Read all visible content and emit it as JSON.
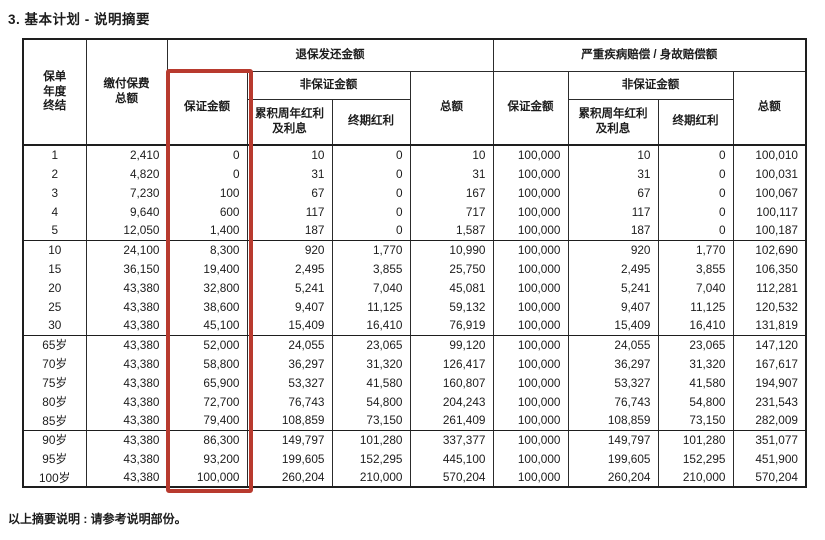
{
  "title": "3. 基本计划 - 说明摘要",
  "footnote": "以上摘要说明 : 请参考说明部份。",
  "accent_color": "#b83a2e",
  "table": {
    "header": {
      "policy_year": {
        "l1": "保单",
        "l2": "年度",
        "l3": "终结"
      },
      "premium": {
        "l1": "缴付保费",
        "l2": "总额"
      },
      "group_surrender": "退保发还金额",
      "group_benefit": "严重疾病赔偿 / 身故赔偿额",
      "guaranteed": "保证金额",
      "non_guaranteed": "非保证金额",
      "accumulated_dividend": {
        "l1": "累积周年红利",
        "l2": "及利息"
      },
      "terminal_dividend": "终期红利",
      "total": "总额"
    },
    "row_groups": [
      {
        "rows": [
          {
            "year": "1",
            "cells": [
              "2,410",
              "0",
              "10",
              "0",
              "10",
              "100,000",
              "10",
              "0",
              "100,010"
            ]
          },
          {
            "year": "2",
            "cells": [
              "4,820",
              "0",
              "31",
              "0",
              "31",
              "100,000",
              "31",
              "0",
              "100,031"
            ]
          },
          {
            "year": "3",
            "cells": [
              "7,230",
              "100",
              "67",
              "0",
              "167",
              "100,000",
              "67",
              "0",
              "100,067"
            ]
          },
          {
            "year": "4",
            "cells": [
              "9,640",
              "600",
              "117",
              "0",
              "717",
              "100,000",
              "117",
              "0",
              "100,117"
            ]
          },
          {
            "year": "5",
            "cells": [
              "12,050",
              "1,400",
              "187",
              "0",
              "1,587",
              "100,000",
              "187",
              "0",
              "100,187"
            ]
          }
        ]
      },
      {
        "rows": [
          {
            "year": "10",
            "cells": [
              "24,100",
              "8,300",
              "920",
              "1,770",
              "10,990",
              "100,000",
              "920",
              "1,770",
              "102,690"
            ]
          },
          {
            "year": "15",
            "cells": [
              "36,150",
              "19,400",
              "2,495",
              "3,855",
              "25,750",
              "100,000",
              "2,495",
              "3,855",
              "106,350"
            ]
          },
          {
            "year": "20",
            "cells": [
              "43,380",
              "32,800",
              "5,241",
              "7,040",
              "45,081",
              "100,000",
              "5,241",
              "7,040",
              "112,281"
            ]
          },
          {
            "year": "25",
            "cells": [
              "43,380",
              "38,600",
              "9,407",
              "11,125",
              "59,132",
              "100,000",
              "9,407",
              "11,125",
              "120,532"
            ]
          },
          {
            "year": "30",
            "cells": [
              "43,380",
              "45,100",
              "15,409",
              "16,410",
              "76,919",
              "100,000",
              "15,409",
              "16,410",
              "131,819"
            ]
          }
        ]
      },
      {
        "rows": [
          {
            "year": "65岁",
            "cells": [
              "43,380",
              "52,000",
              "24,055",
              "23,065",
              "99,120",
              "100,000",
              "24,055",
              "23,065",
              "147,120"
            ]
          },
          {
            "year": "70岁",
            "cells": [
              "43,380",
              "58,800",
              "36,297",
              "31,320",
              "126,417",
              "100,000",
              "36,297",
              "31,320",
              "167,617"
            ]
          },
          {
            "year": "75岁",
            "cells": [
              "43,380",
              "65,900",
              "53,327",
              "41,580",
              "160,807",
              "100,000",
              "53,327",
              "41,580",
              "194,907"
            ]
          },
          {
            "year": "80岁",
            "cells": [
              "43,380",
              "72,700",
              "76,743",
              "54,800",
              "204,243",
              "100,000",
              "76,743",
              "54,800",
              "231,543"
            ]
          },
          {
            "year": "85岁",
            "cells": [
              "43,380",
              "79,400",
              "108,859",
              "73,150",
              "261,409",
              "100,000",
              "108,859",
              "73,150",
              "282,009"
            ]
          }
        ]
      },
      {
        "rows": [
          {
            "year": "90岁",
            "cells": [
              "43,380",
              "86,300",
              "149,797",
              "101,280",
              "337,377",
              "100,000",
              "149,797",
              "101,280",
              "351,077"
            ]
          },
          {
            "year": "95岁",
            "cells": [
              "43,380",
              "93,200",
              "199,605",
              "152,295",
              "445,100",
              "100,000",
              "199,605",
              "152,295",
              "451,900"
            ]
          },
          {
            "year": "100岁",
            "cells": [
              "43,380",
              "100,000",
              "260,204",
              "210,000",
              "570,204",
              "100,000",
              "260,204",
              "210,000",
              "570,204"
            ]
          }
        ]
      }
    ]
  }
}
